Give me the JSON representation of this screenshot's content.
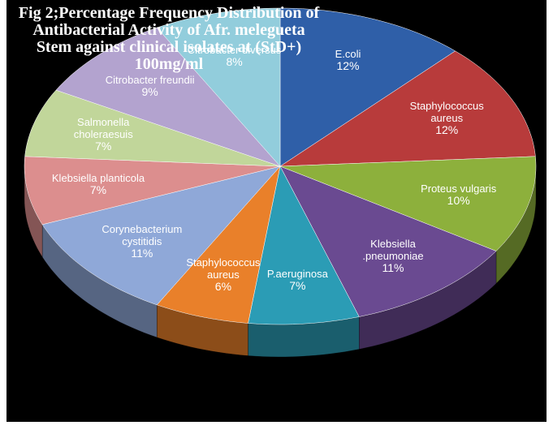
{
  "chart_data": {
    "type": "pie",
    "title": "Fig 2;Percentage Frequency Distribution of Antibacterial Activity of Afr. melegueta Stem against clinical isolates at (StD+) 100mg/ml",
    "categories": [
      "E.coli",
      "Staphylococcus aureus",
      "Proteus vulgaris",
      "Klebsiella .pneumoniae",
      "P.aeruginosa",
      "Staphylococcus aureus",
      "Corynebacterium cystitidis",
      "Klebsiella planticola",
      "Salmonella choleraesuis",
      "Citrobacter freundii",
      "Citrobacter diversus"
    ],
    "values": [
      12,
      12,
      10,
      11,
      7,
      6,
      11,
      7,
      7,
      9,
      8
    ],
    "value_labels": [
      "12%",
      "12%",
      "10%",
      "11%",
      "7%",
      "6%",
      "11%",
      "7%",
      "7%",
      "9%",
      "8%"
    ],
    "colors": [
      "#2f5fa8",
      "#b83b3b",
      "#8db03c",
      "#6a4a91",
      "#2b9cb5",
      "#e9802a",
      "#8fa8d8",
      "#dc8e8e",
      "#c1d69a",
      "#b3a3cf",
      "#92cddc"
    ]
  }
}
